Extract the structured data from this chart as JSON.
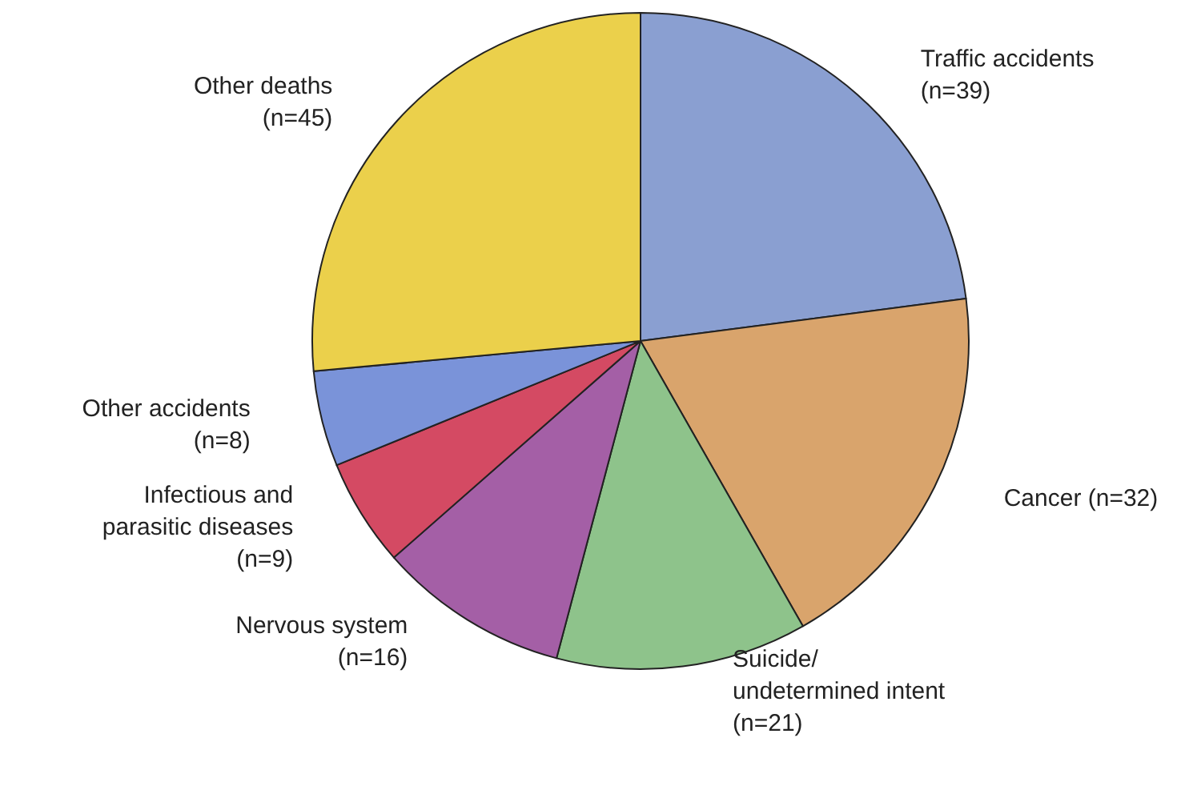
{
  "chart_data": {
    "type": "pie",
    "categories": [
      "Traffic accidents\n(n=39)",
      "Cancer (n=32)",
      "Suicide/\nundetermined intent\n(n=21)",
      "Nervous system\n(n=16)",
      "Infectious and\nparasitic diseases\n(n=9)",
      "Other accidents\n(n=8)",
      "Other deaths\n(n=45)"
    ],
    "values": [
      39,
      32,
      21,
      16,
      9,
      8,
      45
    ],
    "colors": [
      "#8a9fd1",
      "#d9a46c",
      "#8ec38b",
      "#a45fa6",
      "#d44a63",
      "#7a93d9",
      "#ebd04b"
    ],
    "legend": false
  }
}
